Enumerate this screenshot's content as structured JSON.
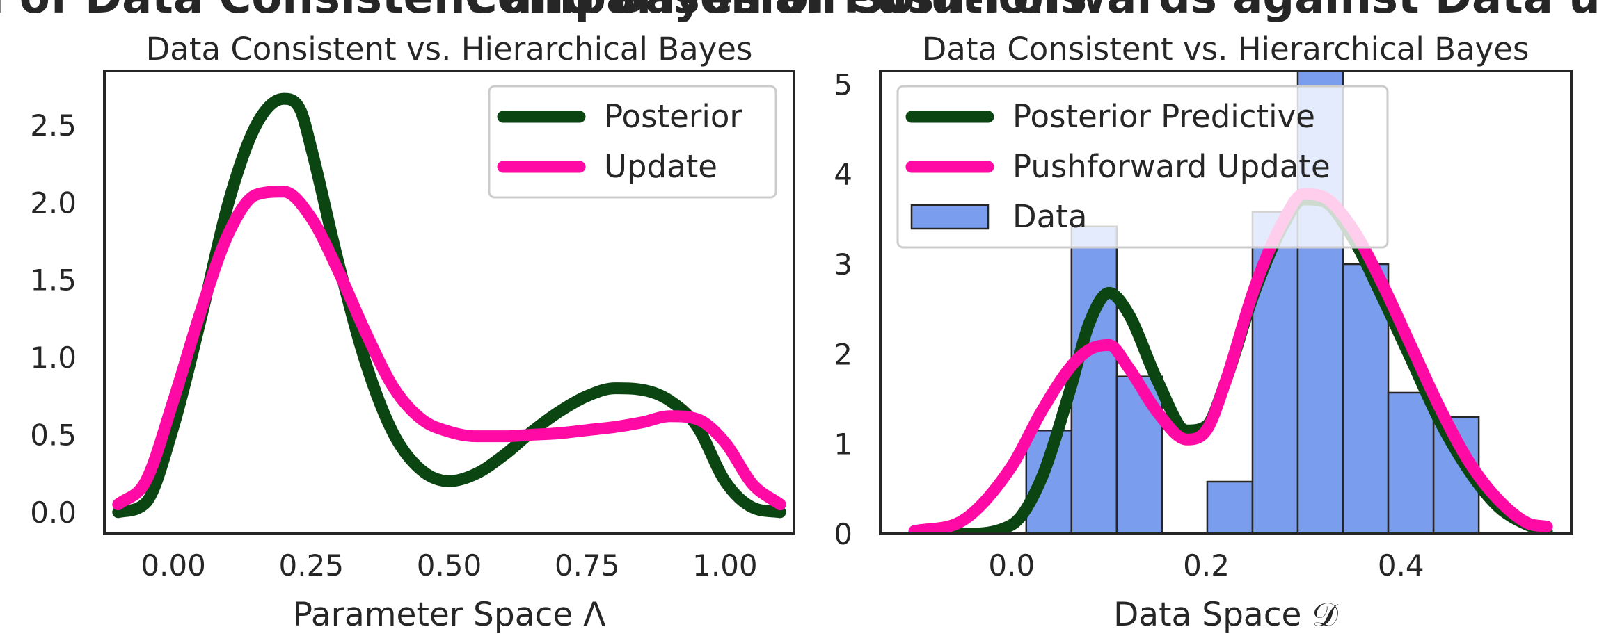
{
  "header_fragment": {
    "left": "Comparison of Data Consistent and Bayesian Solutions",
    "right": "Comparison of Push-Forwards against Data using Updates"
  },
  "chart_data": [
    {
      "type": "line",
      "title": "Data Consistent vs. Hierarchical Bayes",
      "xlabel": "Parameter Space Λ",
      "ylabel": "",
      "xlim": [
        -0.125,
        1.125
      ],
      "ylim": [
        -0.14,
        2.85
      ],
      "xticks": [
        0.0,
        0.25,
        0.5,
        0.75,
        1.0
      ],
      "xtick_labels": [
        "0.00",
        "0.25",
        "0.50",
        "0.75",
        "1.00"
      ],
      "yticks": [
        0.0,
        0.5,
        1.0,
        1.5,
        2.0,
        2.5
      ],
      "ytick_labels": [
        "0.0",
        "0.5",
        "1.0",
        "1.5",
        "2.0",
        "2.5"
      ],
      "grid": false,
      "legend": "top-right",
      "series": [
        {
          "name": "Posterior",
          "color": "#0b4512",
          "x": [
            -0.1,
            -0.05,
            0.0,
            0.05,
            0.1,
            0.15,
            0.2,
            0.23,
            0.25,
            0.3,
            0.35,
            0.4,
            0.45,
            0.5,
            0.55,
            0.6,
            0.65,
            0.7,
            0.75,
            0.8,
            0.85,
            0.9,
            0.95,
            1.0,
            1.05,
            1.1
          ],
          "y": [
            0.0,
            0.06,
            0.55,
            1.25,
            2.0,
            2.5,
            2.67,
            2.6,
            2.35,
            1.6,
            0.95,
            0.5,
            0.27,
            0.2,
            0.25,
            0.37,
            0.52,
            0.65,
            0.75,
            0.8,
            0.79,
            0.72,
            0.55,
            0.2,
            0.03,
            0.0
          ]
        },
        {
          "name": "Update",
          "color": "#ff0aa5",
          "x": [
            -0.1,
            -0.05,
            0.0,
            0.05,
            0.1,
            0.15,
            0.2,
            0.25,
            0.3,
            0.35,
            0.4,
            0.45,
            0.5,
            0.55,
            0.6,
            0.65,
            0.7,
            0.75,
            0.8,
            0.85,
            0.9,
            0.95,
            1.0,
            1.05,
            1.1
          ],
          "y": [
            0.05,
            0.2,
            0.72,
            1.3,
            1.8,
            2.05,
            2.07,
            1.9,
            1.55,
            1.15,
            0.8,
            0.6,
            0.52,
            0.49,
            0.49,
            0.5,
            0.51,
            0.53,
            0.55,
            0.58,
            0.62,
            0.6,
            0.45,
            0.18,
            0.05
          ]
        }
      ]
    },
    {
      "type": "histogram",
      "title": "Data Consistent vs. Hierarchical Bayes",
      "xlabel": "Data Space 𝒟",
      "ylabel": "",
      "xlim": [
        -0.135,
        0.575
      ],
      "ylim": [
        0.0,
        5.15
      ],
      "xticks": [
        0.0,
        0.2,
        0.4
      ],
      "xtick_labels": [
        "0.0",
        "0.2",
        "0.4"
      ],
      "yticks": [
        0,
        1,
        2,
        3,
        4,
        5
      ],
      "ytick_labels": [
        "0",
        "1",
        "2",
        "3",
        "4",
        "5"
      ],
      "grid": false,
      "legend": "top-left",
      "histogram": {
        "name": "Data",
        "color": "#7b9ded",
        "edge_color": "#262626",
        "bin_edges": [
          0.015,
          0.0615,
          0.108,
          0.1545,
          0.201,
          0.2475,
          0.294,
          0.3405,
          0.387,
          0.4335,
          0.48
        ],
        "counts": [
          1.15,
          3.42,
          1.75,
          0.0,
          0.58,
          3.58,
          5.18,
          3.0,
          1.57,
          1.3
        ]
      },
      "series": [
        {
          "name": "Posterior Predictive",
          "color": "#0b4512",
          "x": [
            -0.1,
            -0.05,
            0.0,
            0.03,
            0.06,
            0.08,
            0.1,
            0.12,
            0.15,
            0.18,
            0.2,
            0.22,
            0.25,
            0.28,
            0.3,
            0.32,
            0.35,
            0.38,
            0.41,
            0.44,
            0.47,
            0.5,
            0.53,
            0.55
          ],
          "y": [
            0.0,
            0.0,
            0.1,
            0.6,
            1.6,
            2.35,
            2.68,
            2.45,
            1.7,
            1.15,
            1.2,
            1.7,
            2.7,
            3.45,
            3.72,
            3.7,
            3.3,
            2.65,
            1.95,
            1.25,
            0.7,
            0.3,
            0.1,
            0.03
          ]
        },
        {
          "name": "Pushforward Update",
          "color": "#ff0aa5",
          "x": [
            -0.1,
            -0.05,
            0.0,
            0.03,
            0.06,
            0.08,
            0.1,
            0.12,
            0.15,
            0.18,
            0.2,
            0.22,
            0.25,
            0.28,
            0.3,
            0.32,
            0.35,
            0.38,
            0.41,
            0.44,
            0.47,
            0.5,
            0.53,
            0.55
          ],
          "y": [
            0.03,
            0.15,
            0.75,
            1.35,
            1.85,
            2.05,
            2.1,
            1.85,
            1.35,
            1.05,
            1.15,
            1.7,
            2.75,
            3.5,
            3.78,
            3.75,
            3.4,
            2.8,
            2.1,
            1.4,
            0.8,
            0.38,
            0.12,
            0.08
          ]
        }
      ]
    }
  ]
}
